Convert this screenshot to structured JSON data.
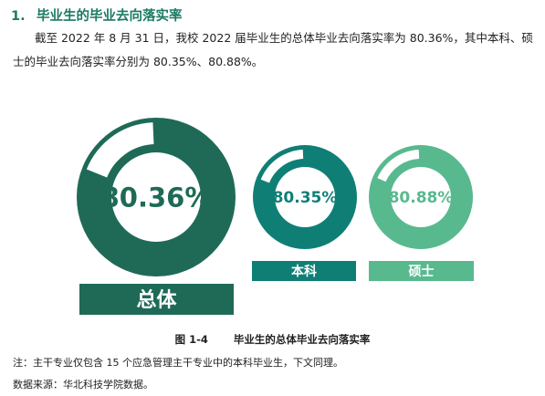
{
  "section": {
    "number": "1.",
    "title": "毕业生的毕业去向落实率"
  },
  "paragraph": "截至 2022 年 8 月 31 日，我校 2022 届毕业生的总体毕业去向落实率为 80.36%，其中本科、硕士的毕业去向落实率分别为 80.35%、80.88%。",
  "chart_data": {
    "type": "pie",
    "variant": "donut",
    "title": "毕业生的总体毕业去向落实率",
    "series": [
      {
        "name": "总体",
        "value": 80.36,
        "label": "80.36%",
        "color": "#1f6a57"
      },
      {
        "name": "本科",
        "value": 80.35,
        "label": "80.35%",
        "color": "#0f7f76"
      },
      {
        "name": "硕士",
        "value": 80.88,
        "label": "80.88%",
        "color": "#58b98f"
      }
    ],
    "unit": "%",
    "max": 100
  },
  "figure": {
    "number": "图 1-4",
    "caption": "毕业生的总体毕业去向落实率"
  },
  "notes": {
    "note": "注：主干专业仅包含 15 个应急管理主干专业中的本科毕业生，下文同理。",
    "source": "数据来源：华北科技学院数据。"
  }
}
